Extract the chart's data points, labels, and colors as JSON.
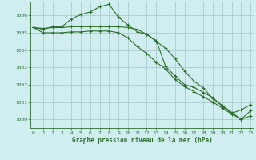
{
  "xlabel": "Graphe pression niveau de la mer (hPa)",
  "ylabel": "",
  "background_color": "#d0eef0",
  "grid_color": "#aacccc",
  "line_color": "#2d6e2d",
  "ylim": [
    999.5,
    1006.8
  ],
  "xlim": [
    -0.3,
    23.3
  ],
  "yticks": [
    1000,
    1001,
    1002,
    1003,
    1004,
    1005,
    1006
  ],
  "xticks": [
    0,
    1,
    2,
    3,
    4,
    5,
    6,
    7,
    8,
    9,
    10,
    11,
    12,
    13,
    14,
    15,
    16,
    17,
    18,
    19,
    20,
    21,
    22,
    23
  ],
  "series": [
    [
      1005.3,
      1005.2,
      1005.35,
      1005.35,
      1005.8,
      1006.05,
      1006.2,
      1006.5,
      1006.65,
      1005.9,
      1005.45,
      1005.05,
      1004.9,
      1004.55,
      1003.05,
      1002.5,
      1002.0,
      1001.85,
      1001.55,
      1001.25,
      1000.75,
      1000.35,
      1000.55,
      1000.85
    ],
    [
      1005.3,
      1005.25,
      1005.3,
      1005.3,
      1005.35,
      1005.35,
      1005.35,
      1005.35,
      1005.35,
      1005.35,
      1005.3,
      1005.2,
      1004.9,
      1004.5,
      1004.1,
      1003.5,
      1002.8,
      1002.2,
      1001.8,
      1001.2,
      1000.8,
      1000.4,
      1000.0,
      1000.2
    ],
    [
      1005.3,
      1005.0,
      1005.0,
      1005.0,
      1005.05,
      1005.05,
      1005.1,
      1005.1,
      1005.1,
      1005.0,
      1004.7,
      1004.2,
      1003.8,
      1003.3,
      1002.9,
      1002.3,
      1001.9,
      1001.6,
      1001.3,
      1001.0,
      1000.65,
      1000.3,
      1000.0,
      1000.5
    ]
  ]
}
